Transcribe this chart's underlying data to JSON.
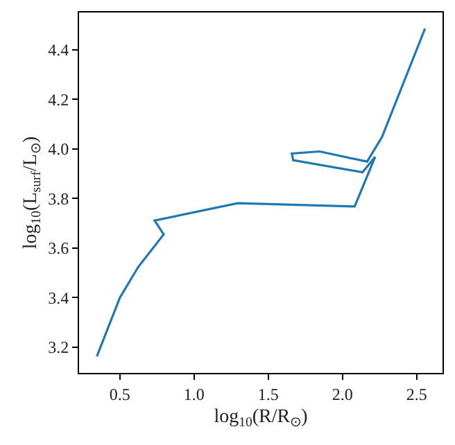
{
  "chart_data": {
    "type": "line",
    "xlabel": "log$_{10}$(R/R$_{⊙}$)",
    "ylabel": "log$_{10}$(L$_{surf}$/L$_{⊙}$)",
    "x": [
      0.345,
      0.5,
      0.624,
      0.795,
      0.734,
      1.294,
      2.082,
      2.22,
      2.135,
      1.668,
      1.659,
      1.846,
      2.166,
      2.266,
      2.556
    ],
    "series": [
      {
        "color": "#1f77b4",
        "values": [
          3.163,
          3.4,
          3.524,
          3.655,
          3.711,
          3.781,
          3.768,
          3.968,
          3.906,
          3.955,
          3.982,
          3.99,
          3.949,
          4.048,
          4.486
        ]
      }
    ],
    "xlim": [
      0.225,
      2.674
    ],
    "ylim": [
      3.096,
      4.551
    ],
    "xticks": [
      0.5,
      {
        "value": 1,
        "label": "1.0"
      },
      1.5,
      {
        "value": 2,
        "label": "2.0"
      },
      2.5
    ],
    "yticks": [
      3.2,
      3.4,
      3.6,
      3.8,
      {
        "value": 4,
        "label": "4.0"
      },
      4.2,
      4.4
    ],
    "grid": false,
    "legend": false,
    "marker": "none",
    "line_style": "solid"
  }
}
